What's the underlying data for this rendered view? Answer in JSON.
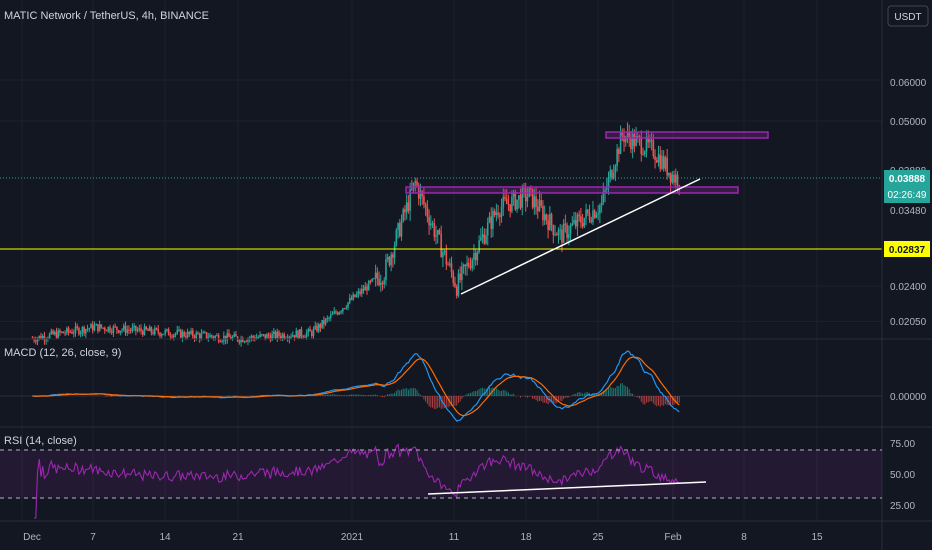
{
  "header": {
    "title": "MATIC Network / TetherUS, 4h, BINANCE",
    "currency_button": "USDT"
  },
  "price_panel": {
    "price_ticks": [
      "0.06000",
      "0.05000",
      "0.02400",
      "0.02050"
    ],
    "last_price": "0.03888",
    "countdown": "02:26:49",
    "horizontal_level": "0.02837",
    "hidden_tick_1": "0.03888",
    "hidden_tick_2": "0.03480"
  },
  "macd_panel": {
    "label": "MACD (12, 26, close, 9)",
    "tick": "0.00000"
  },
  "rsi_panel": {
    "label": "RSI (14, close)",
    "ticks": [
      "75.00",
      "50.00",
      "25.00"
    ]
  },
  "time_axis": {
    "labels": [
      "Dec",
      "7",
      "14",
      "21",
      "2021",
      "11",
      "18",
      "25",
      "Feb",
      "8",
      "15"
    ]
  },
  "colors": {
    "background": "#131722",
    "bull": "#26a69a",
    "bear": "#ef5350",
    "level_line": "#ffff00",
    "box": "#9c27b0",
    "trendline": "#ffffff",
    "macd_line": "#2196f3",
    "signal_line": "#ff6d00",
    "rsi_line": "#9c27b0",
    "last_price_badge": "#26a69a"
  },
  "chart_data": {
    "type": "candlestick",
    "symbol": "MATIC Network / TetherUS",
    "interval": "4h",
    "exchange": "BINANCE",
    "price_scale": "log",
    "price_axis_ticks": [
      0.06,
      0.05,
      0.024,
      0.0205
    ],
    "last_price": 0.03888,
    "horizontal_level": 0.02837,
    "resistance_boxes": [
      {
        "from": "2021-01-07",
        "to": "2021-02-02",
        "price_low": 0.0355,
        "price_high": 0.0364
      },
      {
        "from": "2021-01-26",
        "to": "2021-02-06",
        "price_low": 0.0475,
        "price_high": 0.0487
      }
    ],
    "trendlines": [
      {
        "from": "2021-01-11",
        "price_from": 0.0235,
        "to": "2021-02-04",
        "price_to": 0.0395
      }
    ],
    "price_path_approx": [
      {
        "date": "2020-12-01",
        "price": 0.019
      },
      {
        "date": "2020-12-07",
        "price": 0.02
      },
      {
        "date": "2020-12-14",
        "price": 0.0195
      },
      {
        "date": "2020-12-21",
        "price": 0.019
      },
      {
        "date": "2020-12-28",
        "price": 0.0195
      },
      {
        "date": "2021-01-04",
        "price": 0.0255
      },
      {
        "date": "2021-01-07",
        "price": 0.038
      },
      {
        "date": "2021-01-11",
        "price": 0.024
      },
      {
        "date": "2021-01-15",
        "price": 0.034
      },
      {
        "date": "2021-01-18",
        "price": 0.036
      },
      {
        "date": "2021-01-21",
        "price": 0.03
      },
      {
        "date": "2021-01-25",
        "price": 0.0345
      },
      {
        "date": "2021-01-27",
        "price": 0.047
      },
      {
        "date": "2021-01-30",
        "price": 0.044
      },
      {
        "date": "2021-02-01",
        "price": 0.0389
      }
    ],
    "macd": {
      "fast": 12,
      "slow": 26,
      "source": "close",
      "signal": 9,
      "zero_line": 0.0
    },
    "rsi": {
      "length": 14,
      "source": "close",
      "upper_band": 75,
      "middle": 50,
      "lower_band": 25,
      "trendline": {
        "from": "2021-01-10",
        "value_from": 33,
        "to": "2021-02-05",
        "value_to": 42
      }
    },
    "x_tick_labels": [
      "Dec",
      "7",
      "14",
      "21",
      "2021",
      "11",
      "18",
      "25",
      "Feb",
      "8",
      "15"
    ]
  }
}
